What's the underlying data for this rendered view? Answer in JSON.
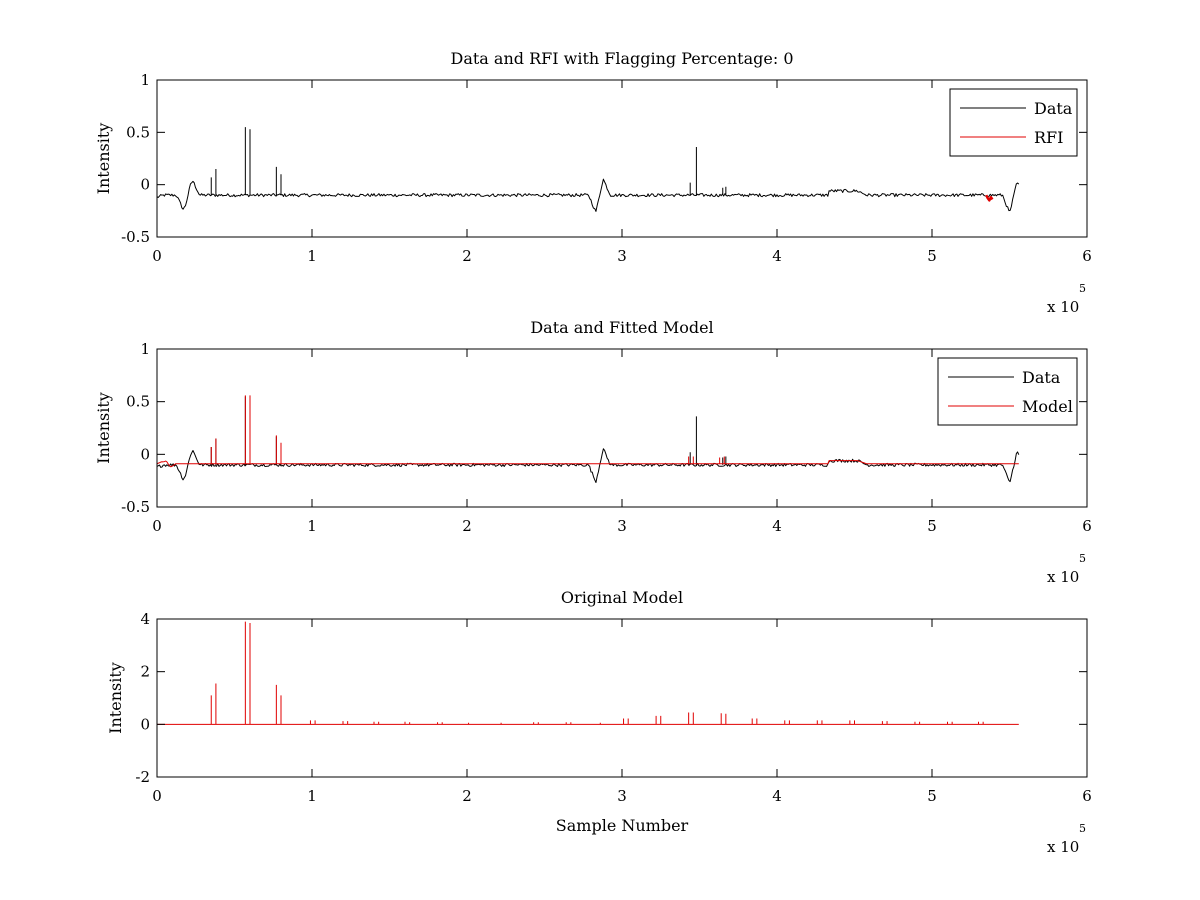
{
  "chart_data": [
    {
      "type": "line",
      "title": "Data and RFI with Flagging Percentage: 0",
      "xlabel": "",
      "ylabel": "Intensity",
      "xlim": [
        0,
        600000
      ],
      "ylim": [
        -0.5,
        1
      ],
      "x_ticks": [
        0,
        1,
        2,
        3,
        4,
        5,
        6
      ],
      "y_ticks": [
        1,
        0.5,
        0,
        -0.5
      ],
      "y_tick_labels": [
        "1",
        "0.5",
        "0",
        "-0.5"
      ],
      "x_exponent": "5",
      "x_exponent_label": "x 10",
      "grid": false,
      "legend": {
        "placement": "top-right",
        "entries": [
          "Data",
          "RFI"
        ]
      },
      "series": [
        {
          "name": "Data",
          "color": "#000000",
          "baseline": -0.1,
          "noise": 0.015,
          "x_end": 556000,
          "dips": [
            [
              0,
              -0.12
            ],
            [
              17000,
              -0.24
            ],
            [
              23000,
              0.04
            ],
            [
              283000,
              -0.26
            ],
            [
              288000,
              0.05
            ],
            [
              550000,
              -0.27
            ],
            [
              555000,
              0.02
            ]
          ],
          "spikes": [
            [
              35000,
              0.07
            ],
            [
              38000,
              0.15
            ],
            [
              57000,
              0.55
            ],
            [
              60000,
              0.53
            ],
            [
              77000,
              0.17
            ],
            [
              80000,
              0.1
            ],
            [
              344000,
              0.02
            ],
            [
              348000,
              0.36
            ],
            [
              365000,
              -0.03
            ],
            [
              367000,
              -0.02
            ]
          ],
          "bump": [
            433000,
            452000,
            0.04
          ]
        },
        {
          "name": "RFI",
          "color": "#e00000",
          "x": [
            535000,
            536000,
            537000,
            538000,
            539000
          ],
          "y": [
            -0.1,
            -0.13,
            -0.15,
            -0.12,
            -0.14
          ]
        }
      ]
    },
    {
      "type": "line",
      "title": "Data and Fitted Model",
      "xlabel": "",
      "ylabel": "Intensity",
      "xlim": [
        0,
        600000
      ],
      "ylim": [
        -0.5,
        1
      ],
      "x_ticks": [
        0,
        1,
        2,
        3,
        4,
        5,
        6
      ],
      "y_ticks": [
        1,
        0.5,
        0,
        -0.5
      ],
      "y_tick_labels": [
        "1",
        "0.5",
        "0",
        "-0.5"
      ],
      "x_exponent": "5",
      "x_exponent_label": "x 10",
      "grid": false,
      "legend": {
        "placement": "top-right",
        "entries": [
          "Data",
          "Model"
        ]
      },
      "series": [
        {
          "name": "Data",
          "color": "#000000",
          "baseline": -0.1,
          "noise": 0.015,
          "x_end": 556000,
          "dips": [
            [
              0,
              -0.12
            ],
            [
              17000,
              -0.24
            ],
            [
              23000,
              0.04
            ],
            [
              283000,
              -0.26
            ],
            [
              288000,
              0.05
            ],
            [
              550000,
              -0.27
            ],
            [
              555000,
              0.02
            ]
          ],
          "spikes": [
            [
              35000,
              0.07
            ],
            [
              38000,
              0.15
            ],
            [
              57000,
              0.55
            ],
            [
              60000,
              0.53
            ],
            [
              77000,
              0.17
            ],
            [
              80000,
              0.1
            ],
            [
              344000,
              0.02
            ],
            [
              348000,
              0.36
            ],
            [
              365000,
              -0.03
            ],
            [
              367000,
              -0.02
            ]
          ],
          "bump": [
            433000,
            452000,
            0.04
          ]
        },
        {
          "name": "Model",
          "color": "#e00000",
          "baseline": -0.09,
          "x_end": 556000,
          "start_bumps": [
            [
              3000,
              0.02
            ],
            [
              6000,
              0.03
            ],
            [
              9000,
              -0.03
            ]
          ],
          "spikes": [
            [
              35000,
              0.07
            ],
            [
              38000,
              0.15
            ],
            [
              57000,
              0.56
            ],
            [
              60000,
              0.56
            ],
            [
              77000,
              0.18
            ],
            [
              80000,
              0.11
            ],
            [
              343000,
              -0.02
            ],
            [
              346000,
              -0.02
            ],
            [
              363000,
              -0.03
            ],
            [
              366000,
              -0.02
            ]
          ],
          "bump": [
            433000,
            452000,
            0.03
          ]
        }
      ]
    },
    {
      "type": "line",
      "title": "Original Model",
      "xlabel": "Sample Number",
      "ylabel": "Intensity",
      "xlim": [
        0,
        600000
      ],
      "ylim": [
        -2,
        4
      ],
      "x_ticks": [
        0,
        1,
        2,
        3,
        4,
        5,
        6
      ],
      "y_ticks": [
        4,
        2,
        0,
        -2
      ],
      "y_tick_labels": [
        "4",
        "2",
        "0",
        "-2"
      ],
      "x_exponent": "5",
      "x_exponent_label": "x 10",
      "grid": false,
      "series": [
        {
          "name": "",
          "color": "#e00000",
          "baseline": 0,
          "x_end": 556000,
          "spikes": [
            [
              35000,
              1.1
            ],
            [
              38000,
              1.55
            ],
            [
              57000,
              3.9
            ],
            [
              60000,
              3.85
            ],
            [
              77000,
              1.5
            ],
            [
              80000,
              1.1
            ],
            [
              99000,
              0.15
            ],
            [
              102000,
              0.15
            ],
            [
              120000,
              0.12
            ],
            [
              123000,
              0.12
            ],
            [
              140000,
              0.1
            ],
            [
              143000,
              0.1
            ],
            [
              160000,
              0.1
            ],
            [
              163000,
              0.08
            ],
            [
              181000,
              0.08
            ],
            [
              184000,
              0.08
            ],
            [
              201000,
              0.06
            ],
            [
              222000,
              0.06
            ],
            [
              243000,
              0.08
            ],
            [
              246000,
              0.08
            ],
            [
              264000,
              0.08
            ],
            [
              267000,
              0.08
            ],
            [
              286000,
              0.06
            ],
            [
              301000,
              0.22
            ],
            [
              304000,
              0.22
            ],
            [
              322000,
              0.32
            ],
            [
              325000,
              0.32
            ],
            [
              343000,
              0.45
            ],
            [
              346000,
              0.45
            ],
            [
              364000,
              0.42
            ],
            [
              367000,
              0.4
            ],
            [
              384000,
              0.22
            ],
            [
              387000,
              0.22
            ],
            [
              405000,
              0.15
            ],
            [
              408000,
              0.15
            ],
            [
              426000,
              0.15
            ],
            [
              429000,
              0.15
            ],
            [
              447000,
              0.15
            ],
            [
              450000,
              0.15
            ],
            [
              468000,
              0.12
            ],
            [
              471000,
              0.12
            ],
            [
              489000,
              0.1
            ],
            [
              492000,
              0.1
            ],
            [
              510000,
              0.1
            ],
            [
              513000,
              0.1
            ],
            [
              530000,
              0.1
            ],
            [
              533000,
              0.1
            ]
          ]
        }
      ]
    }
  ]
}
